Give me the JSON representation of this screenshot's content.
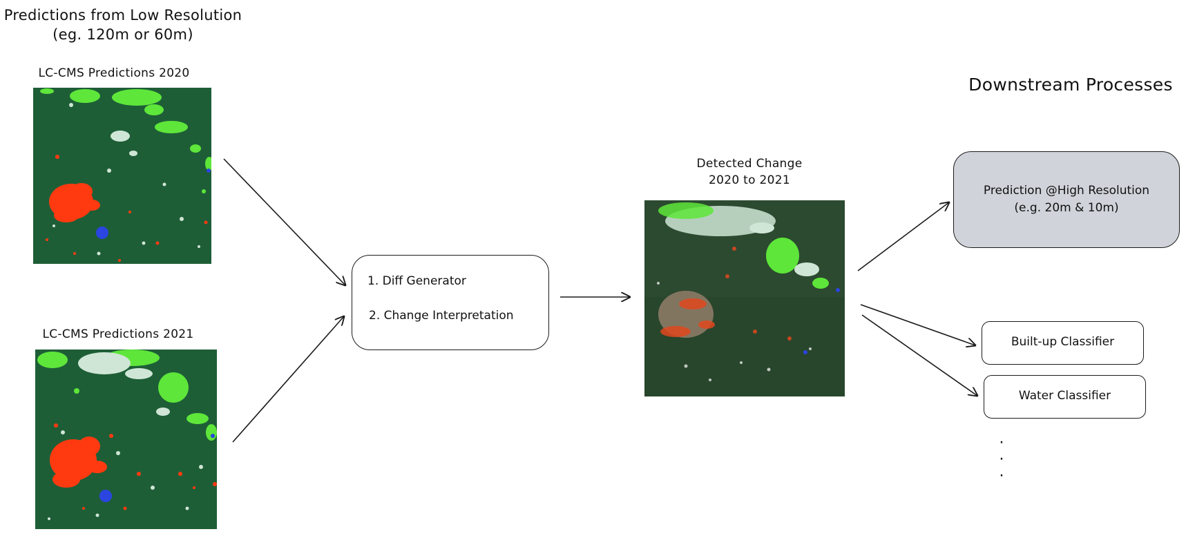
{
  "left_section": {
    "title_line1": "Predictions from Low Resolution",
    "title_line2": "(eg. 120m or 60m)"
  },
  "map_2020": {
    "label": "LC-CMS Predictions 2020"
  },
  "map_2021": {
    "label": "LC-CMS Predictions 2021"
  },
  "process_box": {
    "step1": "1. Diff Generator",
    "step2": "2. Change Interpretation"
  },
  "change_map": {
    "label_line1": "Detected Change",
    "label_line2": "2020 to 2021"
  },
  "downstream": {
    "title": "Downstream Processes",
    "high_res": {
      "line1": "Prediction @High Resolution",
      "line2": "(e.g. 20m & 10m)"
    },
    "builtup": "Built-up Classifier",
    "water": "Water Classifier",
    "ellipsis": [
      "·",
      "·",
      "·"
    ]
  },
  "colors": {
    "forest": "#1e5e37",
    "urban": "#ff3a10",
    "grass": "#5ee63a",
    "bare": "#cfe6d6",
    "water": "#2a45e0",
    "box_fill_high_res": "#d0d4da",
    "satellite_base": "#2c4a30"
  }
}
